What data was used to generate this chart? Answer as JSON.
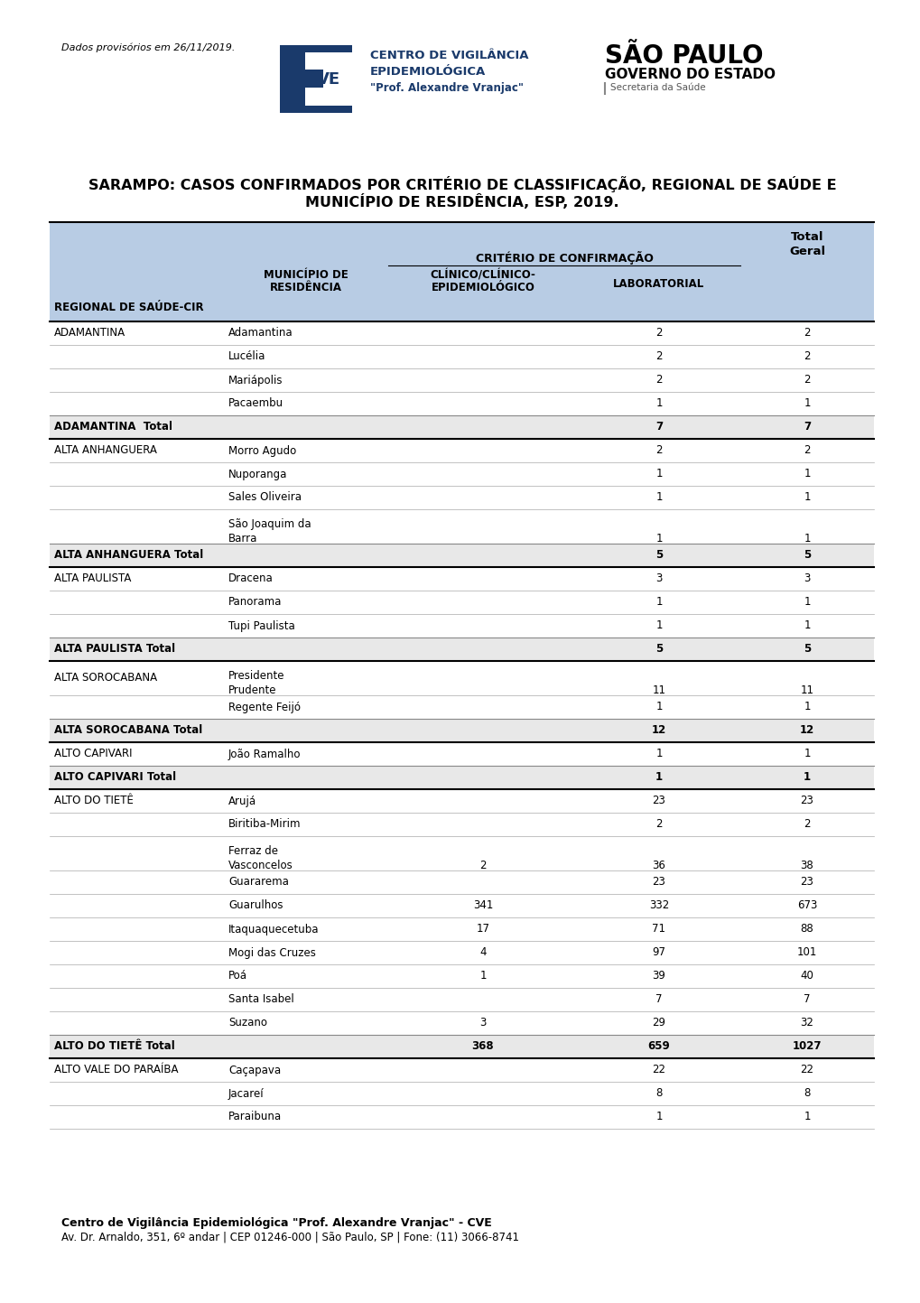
{
  "title_line1": "SARAMPO: CASOS CONFIRMADOS POR CRITÉRIO DE CLASSIFICAÇÃO, REGIONAL DE SAÚDE E",
  "title_line2": "MUNICÍPIO DE RESIDÊNCIA, ESP, 2019.",
  "header_bg_color": "#b8cce4",
  "watermark_text": "Dados provisórios em 26/11/2019.",
  "footer_line1": "Centro de Vigilância Epidemiológica \"Prof. Alexandre Vranjac\" - CVE",
  "footer_line2": "Av. Dr. Arnaldo, 351, 6º andar | CEP 01246-000 | São Paulo, SP | Fone: (11) 3066-8741",
  "rows": [
    {
      "regional": "ADAMANTINA",
      "mun_line1": "Adamantina",
      "mun_line2": "",
      "clinico": "",
      "lab": "2",
      "total": "2",
      "is_total": false,
      "is_subtotal": false
    },
    {
      "regional": "",
      "mun_line1": "Lucélia",
      "mun_line2": "",
      "clinico": "",
      "lab": "2",
      "total": "2",
      "is_total": false,
      "is_subtotal": false
    },
    {
      "regional": "",
      "mun_line1": "Mariápolis",
      "mun_line2": "",
      "clinico": "",
      "lab": "2",
      "total": "2",
      "is_total": false,
      "is_subtotal": false
    },
    {
      "regional": "",
      "mun_line1": "Pacaembu",
      "mun_line2": "",
      "clinico": "",
      "lab": "1",
      "total": "1",
      "is_total": false,
      "is_subtotal": false
    },
    {
      "regional": "ADAMANTINA  Total",
      "mun_line1": "",
      "mun_line2": "",
      "clinico": "",
      "lab": "7",
      "total": "7",
      "is_total": true,
      "is_subtotal": false
    },
    {
      "regional": "ALTA ANHANGUERA",
      "mun_line1": "Morro Agudo",
      "mun_line2": "",
      "clinico": "",
      "lab": "2",
      "total": "2",
      "is_total": false,
      "is_subtotal": false
    },
    {
      "regional": "",
      "mun_line1": "Nuporanga",
      "mun_line2": "",
      "clinico": "",
      "lab": "1",
      "total": "1",
      "is_total": false,
      "is_subtotal": false
    },
    {
      "regional": "",
      "mun_line1": "Sales Oliveira",
      "mun_line2": "",
      "clinico": "",
      "lab": "1",
      "total": "1",
      "is_total": false,
      "is_subtotal": false
    },
    {
      "regional": "",
      "mun_line1": "São Joaquim da",
      "mun_line2": "Barra",
      "clinico": "",
      "lab": "1",
      "total": "1",
      "is_total": false,
      "is_subtotal": false
    },
    {
      "regional": "ALTA ANHANGUERA Total",
      "mun_line1": "",
      "mun_line2": "",
      "clinico": "",
      "lab": "5",
      "total": "5",
      "is_total": true,
      "is_subtotal": false
    },
    {
      "regional": "ALTA PAULISTA",
      "mun_line1": "Dracena",
      "mun_line2": "",
      "clinico": "",
      "lab": "3",
      "total": "3",
      "is_total": false,
      "is_subtotal": false
    },
    {
      "regional": "",
      "mun_line1": "Panorama",
      "mun_line2": "",
      "clinico": "",
      "lab": "1",
      "total": "1",
      "is_total": false,
      "is_subtotal": false
    },
    {
      "regional": "",
      "mun_line1": "Tupi Paulista",
      "mun_line2": "",
      "clinico": "",
      "lab": "1",
      "total": "1",
      "is_total": false,
      "is_subtotal": false
    },
    {
      "regional": "ALTA PAULISTA Total",
      "mun_line1": "",
      "mun_line2": "",
      "clinico": "",
      "lab": "5",
      "total": "5",
      "is_total": true,
      "is_subtotal": false
    },
    {
      "regional": "ALTA SOROCABANA",
      "mun_line1": "Presidente",
      "mun_line2": "Prudente",
      "clinico": "",
      "lab": "11",
      "total": "11",
      "is_total": false,
      "is_subtotal": false
    },
    {
      "regional": "",
      "mun_line1": "Regente Feijó",
      "mun_line2": "",
      "clinico": "",
      "lab": "1",
      "total": "1",
      "is_total": false,
      "is_subtotal": false
    },
    {
      "regional": "ALTA SOROCABANA Total",
      "mun_line1": "",
      "mun_line2": "",
      "clinico": "",
      "lab": "12",
      "total": "12",
      "is_total": true,
      "is_subtotal": false
    },
    {
      "regional": "ALTO CAPIVARI",
      "mun_line1": "João Ramalho",
      "mun_line2": "",
      "clinico": "",
      "lab": "1",
      "total": "1",
      "is_total": false,
      "is_subtotal": false
    },
    {
      "regional": "ALTO CAPIVARI Total",
      "mun_line1": "",
      "mun_line2": "",
      "clinico": "",
      "lab": "1",
      "total": "1",
      "is_total": true,
      "is_subtotal": false
    },
    {
      "regional": "ALTO DO TIETÊ",
      "mun_line1": "Arujá",
      "mun_line2": "",
      "clinico": "",
      "lab": "23",
      "total": "23",
      "is_total": false,
      "is_subtotal": false
    },
    {
      "regional": "",
      "mun_line1": "Biritiba-Mirim",
      "mun_line2": "",
      "clinico": "",
      "lab": "2",
      "total": "2",
      "is_total": false,
      "is_subtotal": false
    },
    {
      "regional": "",
      "mun_line1": "Ferraz de",
      "mun_line2": "Vasconcelos",
      "clinico": "2",
      "lab": "36",
      "total": "38",
      "is_total": false,
      "is_subtotal": false
    },
    {
      "regional": "",
      "mun_line1": "Guararema",
      "mun_line2": "",
      "clinico": "",
      "lab": "23",
      "total": "23",
      "is_total": false,
      "is_subtotal": false
    },
    {
      "regional": "",
      "mun_line1": "Guarulhos",
      "mun_line2": "",
      "clinico": "341",
      "lab": "332",
      "total": "673",
      "is_total": false,
      "is_subtotal": false
    },
    {
      "regional": "",
      "mun_line1": "Itaquaquecetuba",
      "mun_line2": "",
      "clinico": "17",
      "lab": "71",
      "total": "88",
      "is_total": false,
      "is_subtotal": false
    },
    {
      "regional": "",
      "mun_line1": "Mogi das Cruzes",
      "mun_line2": "",
      "clinico": "4",
      "lab": "97",
      "total": "101",
      "is_total": false,
      "is_subtotal": false
    },
    {
      "regional": "",
      "mun_line1": "Poá",
      "mun_line2": "",
      "clinico": "1",
      "lab": "39",
      "total": "40",
      "is_total": false,
      "is_subtotal": false
    },
    {
      "regional": "",
      "mun_line1": "Santa Isabel",
      "mun_line2": "",
      "clinico": "",
      "lab": "7",
      "total": "7",
      "is_total": false,
      "is_subtotal": false
    },
    {
      "regional": "",
      "mun_line1": "Suzano",
      "mun_line2": "",
      "clinico": "3",
      "lab": "29",
      "total": "32",
      "is_total": false,
      "is_subtotal": false
    },
    {
      "regional": "ALTO DO TIETÊ Total",
      "mun_line1": "",
      "mun_line2": "",
      "clinico": "368",
      "lab": "659",
      "total": "1027",
      "is_total": true,
      "is_subtotal": false
    },
    {
      "regional": "ALTO VALE DO PARAÍBA",
      "mun_line1": "Caçapava",
      "mun_line2": "",
      "clinico": "",
      "lab": "22",
      "total": "22",
      "is_total": false,
      "is_subtotal": false
    },
    {
      "regional": "",
      "mun_line1": "Jacareí",
      "mun_line2": "",
      "clinico": "",
      "lab": "8",
      "total": "8",
      "is_total": false,
      "is_subtotal": false
    },
    {
      "regional": "",
      "mun_line1": "Paraibuna",
      "mun_line2": "",
      "clinico": "",
      "lab": "1",
      "total": "1",
      "is_total": false,
      "is_subtotal": false
    }
  ]
}
